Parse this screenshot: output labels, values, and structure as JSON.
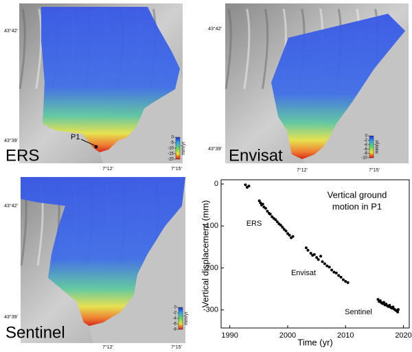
{
  "maps": [
    {
      "label": "ERS",
      "point_label": "P1",
      "lat_ticks": [
        "43°42'",
        "43°39'"
      ],
      "lon_ticks": [
        "7°12'",
        "7°15'"
      ],
      "colorbar": {
        "unit": "mm/yr",
        "lim": [
          0,
          -20
        ],
        "ticks": [
          0,
          -5,
          -10,
          -15,
          -20
        ]
      }
    },
    {
      "label": "Envisat",
      "lat_ticks": [
        "43°42'",
        "43°39'"
      ],
      "lon_ticks": [
        "7°12'",
        "7°15'"
      ],
      "colorbar": {
        "unit": "mm/yr",
        "lim": [
          0,
          -10
        ],
        "ticks": [
          0,
          -2,
          -4,
          -6,
          -8,
          -10
        ]
      }
    },
    {
      "label": "Sentinel",
      "lat_ticks": [
        "43°42'",
        "43°39'"
      ],
      "lon_ticks": [
        "7°12'",
        "7°15'"
      ],
      "colorbar": {
        "unit": "mm/yr",
        "lim": [
          0,
          -8
        ],
        "ticks": [
          0,
          -2,
          -4,
          -6,
          -8
        ]
      }
    }
  ],
  "chart_data": {
    "type": "scatter",
    "title_lines": [
      "Vertical ground",
      "motion in P1"
    ],
    "x_label": "Time (yr)",
    "y_label": "Vertical displacement (mm)",
    "annotations": [
      "ERS",
      "Envisat",
      "Sentinel"
    ],
    "color": "#000000",
    "x": [
      1992.7,
      1993.0,
      1993.3,
      1995.1,
      1995.3,
      1995.5,
      1995.7,
      1995.9,
      1996.2,
      1996.5,
      1996.8,
      1997.0,
      1997.3,
      1997.6,
      1997.9,
      1998.2,
      1998.5,
      1998.8,
      1999.1,
      1999.4,
      1999.7,
      2000.0,
      2000.3,
      2000.6,
      2000.9,
      2003.2,
      2003.5,
      2004.0,
      2004.3,
      2004.6,
      2005.0,
      2005.3,
      2005.7,
      2006.0,
      2006.4,
      2006.8,
      2007.2,
      2007.6,
      2008.0,
      2008.4,
      2008.8,
      2009.2,
      2009.6,
      2010.0,
      2010.4,
      2015.6,
      2015.8,
      2016.0,
      2016.2,
      2016.4,
      2016.6,
      2016.8,
      2017.0,
      2017.2,
      2017.4,
      2017.6,
      2017.8,
      2018.0,
      2018.2,
      2018.4,
      2018.6,
      2018.8,
      2019.0,
      2019.1
    ],
    "values": [
      -2,
      -8,
      -5,
      -40,
      -45,
      -50,
      -48,
      -55,
      -58,
      -65,
      -70,
      -72,
      -78,
      -82,
      -85,
      -90,
      -95,
      -98,
      -103,
      -108,
      -112,
      -118,
      -122,
      -128,
      -125,
      -152,
      -158,
      -165,
      -170,
      -168,
      -175,
      -180,
      -172,
      -185,
      -190,
      -195,
      -198,
      -205,
      -210,
      -212,
      -218,
      -222,
      -228,
      -232,
      -235,
      -275,
      -280,
      -278,
      -283,
      -285,
      -282,
      -288,
      -286,
      -290,
      -292,
      -289,
      -294,
      -296,
      -293,
      -298,
      -300,
      -302,
      -305,
      -299
    ],
    "xlim": [
      1988.5,
      2021
    ],
    "ylim": [
      -343,
      10
    ],
    "xticks": [
      1990,
      2000,
      2010,
      2020
    ],
    "yticks": [
      0,
      -100,
      -200,
      -300
    ]
  }
}
